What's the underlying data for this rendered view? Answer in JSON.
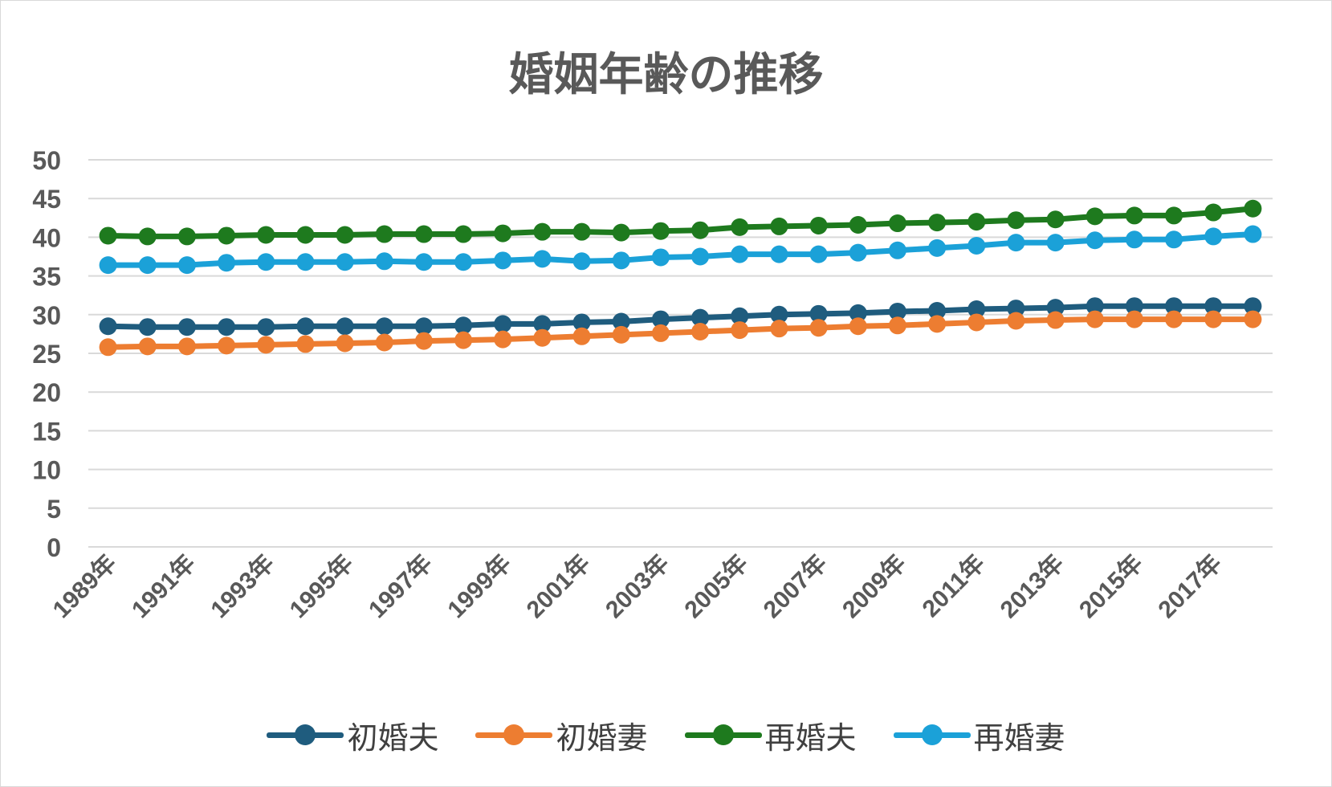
{
  "chart_data": {
    "type": "line",
    "title": "婚姻年齢の推移",
    "categories": [
      "1989年",
      "1990年",
      "1991年",
      "1992年",
      "1993年",
      "1994年",
      "1995年",
      "1996年",
      "1997年",
      "1998年",
      "1999年",
      "2000年",
      "2001年",
      "2002年",
      "2003年",
      "2004年",
      "2005年",
      "2006年",
      "2007年",
      "2008年",
      "2009年",
      "2010年",
      "2011年",
      "2012年",
      "2013年",
      "2014年",
      "2015年",
      "2016年",
      "2017年",
      "2018年"
    ],
    "visible_tick_labels": [
      "1989年",
      "1991年",
      "1993年",
      "1995年",
      "1997年",
      "1999年",
      "2001年",
      "2003年",
      "2005年",
      "2007年",
      "2009年",
      "2011年",
      "2013年",
      "2015年",
      "2017年"
    ],
    "yticks": [
      0,
      5,
      10,
      15,
      20,
      25,
      30,
      35,
      40,
      45,
      50
    ],
    "ylim": [
      0,
      50
    ],
    "grid": true,
    "legend_position": "bottom",
    "series": [
      {
        "name": "初婚夫",
        "color": "#1F5C7E",
        "values": [
          28.5,
          28.4,
          28.4,
          28.4,
          28.4,
          28.5,
          28.5,
          28.5,
          28.5,
          28.6,
          28.8,
          28.8,
          29.0,
          29.1,
          29.4,
          29.6,
          29.8,
          30.0,
          30.1,
          30.2,
          30.4,
          30.5,
          30.7,
          30.8,
          30.9,
          31.1,
          31.1,
          31.1,
          31.1,
          31.1
        ]
      },
      {
        "name": "初婚妻",
        "color": "#ED7D31",
        "values": [
          25.8,
          25.9,
          25.9,
          26.0,
          26.1,
          26.2,
          26.3,
          26.4,
          26.6,
          26.7,
          26.8,
          27.0,
          27.2,
          27.4,
          27.6,
          27.8,
          28.0,
          28.2,
          28.3,
          28.5,
          28.6,
          28.8,
          29.0,
          29.2,
          29.3,
          29.4,
          29.4,
          29.4,
          29.4,
          29.4
        ]
      },
      {
        "name": "再婚夫",
        "color": "#1E7A1E",
        "values": [
          40.2,
          40.1,
          40.1,
          40.2,
          40.3,
          40.3,
          40.3,
          40.4,
          40.4,
          40.4,
          40.5,
          40.7,
          40.7,
          40.6,
          40.8,
          40.9,
          41.3,
          41.4,
          41.5,
          41.6,
          41.8,
          41.9,
          42.0,
          42.2,
          42.3,
          42.7,
          42.8,
          42.8,
          43.2,
          43.7
        ]
      },
      {
        "name": "再婚妻",
        "color": "#1BA1D8",
        "values": [
          36.4,
          36.4,
          36.4,
          36.7,
          36.8,
          36.8,
          36.8,
          36.9,
          36.8,
          36.8,
          37.0,
          37.2,
          36.9,
          37.0,
          37.4,
          37.5,
          37.8,
          37.8,
          37.8,
          38.0,
          38.3,
          38.6,
          38.9,
          39.3,
          39.3,
          39.6,
          39.7,
          39.7,
          40.1,
          40.4
        ]
      }
    ]
  }
}
